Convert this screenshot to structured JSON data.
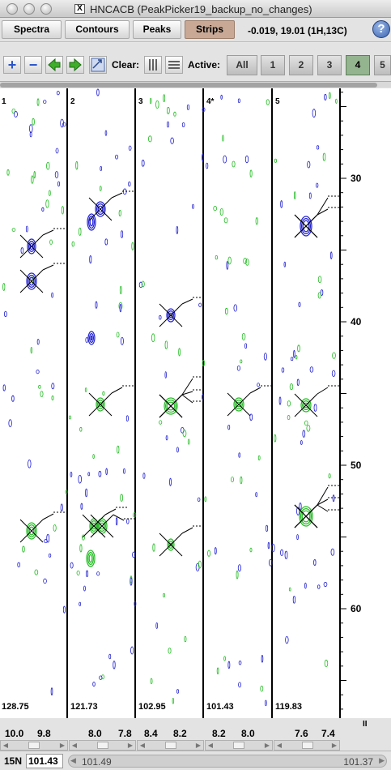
{
  "window": {
    "title": "HNCACB (PeakPicker19_backup_no_changes)",
    "title_icon_glyph": "X"
  },
  "menubar": {
    "buttons": [
      {
        "label": "Spectra"
      },
      {
        "label": "Contours"
      },
      {
        "label": "Peaks"
      },
      {
        "label": "Strips",
        "active": true
      }
    ],
    "cursor_readout": "-0.019,  19.01 (1H,13C)",
    "help_label": "?"
  },
  "toolbar": {
    "add_icon": "+",
    "remove_icon": "−",
    "clear_label": "Clear:",
    "active_label": "Active:",
    "strip_buttons": [
      "All",
      "1",
      "2",
      "3",
      "4",
      "5"
    ],
    "active_strip": "4"
  },
  "strips": [
    {
      "label": "1",
      "value": "128.75"
    },
    {
      "label": "2",
      "value": "121.73"
    },
    {
      "label": "3",
      "value": "102.95"
    },
    {
      "label": "4*",
      "value": "101.43"
    },
    {
      "label": "5",
      "value": "119.83"
    }
  ],
  "y_axis": {
    "ticks": [
      "30",
      "40",
      "50",
      "60"
    ]
  },
  "x_axis": {
    "strip_ticks": [
      [
        "10.0",
        "9.8"
      ],
      [
        "8.0",
        "7.8"
      ],
      [
        "8.4",
        "8.2"
      ],
      [
        "8.2",
        "8.0"
      ],
      [
        "7.6",
        "7.4"
      ]
    ]
  },
  "statusbar": {
    "axis_name": "15N",
    "axis_value": "101.43",
    "range_low": "101.49",
    "range_high": "101.37"
  },
  "colors": {
    "positive_contour": "#1f1fd0",
    "negative_contour": "#22bb22",
    "strips_active": "#c9a996",
    "active_strip_button": "#93b48f"
  }
}
